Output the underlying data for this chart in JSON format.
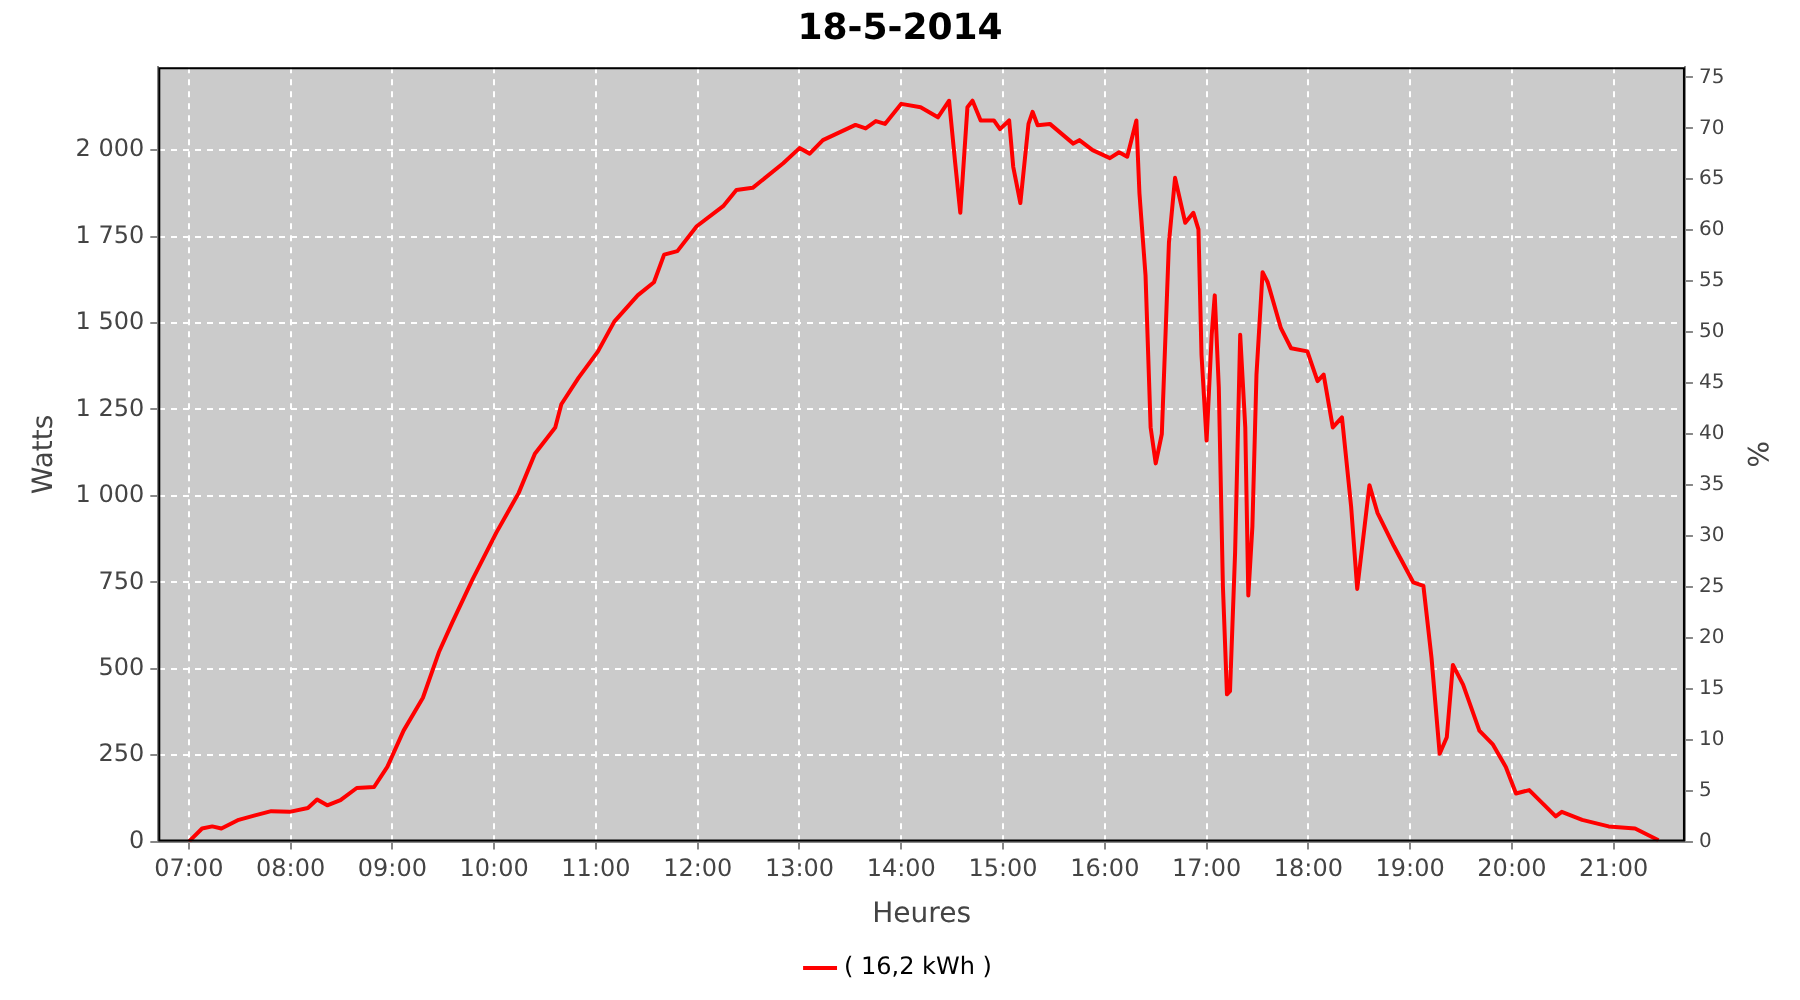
{
  "chart_data": {
    "type": "line",
    "title": "18-5-2014",
    "xlabel": "Heures",
    "ylabel": "Watts",
    "y2label": "%",
    "xlim": [
      6.7,
      21.7
    ],
    "xticks": [
      {
        "value": 7,
        "label": "07:00"
      },
      {
        "value": 8,
        "label": "08:00"
      },
      {
        "value": 9,
        "label": "09:00"
      },
      {
        "value": 10,
        "label": "10:00"
      },
      {
        "value": 11,
        "label": "11:00"
      },
      {
        "value": 12,
        "label": "12:00"
      },
      {
        "value": 13,
        "label": "13:00"
      },
      {
        "value": 14,
        "label": "14:00"
      },
      {
        "value": 15,
        "label": "15:00"
      },
      {
        "value": 16,
        "label": "16:00"
      },
      {
        "value": 17,
        "label": "17:00"
      },
      {
        "value": 18,
        "label": "18:00"
      },
      {
        "value": 19,
        "label": "19:00"
      },
      {
        "value": 20,
        "label": "20:00"
      },
      {
        "value": 21,
        "label": "21:00"
      }
    ],
    "ylim": [
      0,
      2240
    ],
    "yticks": [
      0,
      250,
      500,
      750,
      {
        "value": 1000,
        "label": "1 000"
      },
      {
        "value": 1250,
        "label": "1 250"
      },
      {
        "value": 1500,
        "label": "1 500"
      },
      {
        "value": 1750,
        "label": "1 750"
      },
      {
        "value": 2000,
        "label": "2 000"
      }
    ],
    "y2lim": [
      0,
      76
    ],
    "y2ticks": [
      0,
      5,
      10,
      15,
      20,
      25,
      30,
      35,
      40,
      45,
      50,
      55,
      60,
      65,
      70,
      75
    ],
    "grid": true,
    "legend": "bottom",
    "marker": "none",
    "line_style": "solid",
    "x": [
      7.0,
      7.13,
      7.23,
      7.32,
      7.49,
      7.65,
      7.81,
      7.99,
      8.17,
      8.26,
      8.36,
      8.49,
      8.65,
      8.82,
      8.95,
      9.11,
      9.3,
      9.46,
      9.59,
      9.79,
      10.02,
      10.24,
      10.4,
      10.6,
      10.66,
      10.83,
      11.02,
      11.18,
      11.41,
      11.57,
      11.67,
      11.8,
      11.99,
      12.25,
      12.38,
      12.54,
      12.84,
      13.0,
      13.1,
      13.23,
      13.55,
      13.65,
      13.75,
      13.84,
      14.0,
      14.19,
      14.36,
      14.47,
      14.53,
      14.58,
      14.65,
      14.7,
      14.78,
      14.91,
      14.97,
      15.06,
      15.1,
      15.17,
      15.25,
      15.29,
      15.34,
      15.46,
      15.69,
      15.75,
      15.88,
      16.05,
      16.14,
      16.22,
      16.31,
      16.34,
      16.4,
      16.45,
      16.5,
      16.56,
      16.63,
      16.69,
      16.79,
      16.87,
      16.92,
      16.95,
      17.0,
      17.05,
      17.08,
      17.12,
      17.16,
      17.2,
      17.23,
      17.28,
      17.33,
      17.38,
      17.41,
      17.45,
      17.49,
      17.55,
      17.6,
      17.73,
      17.83,
      17.99,
      18.09,
      18.15,
      18.24,
      18.33,
      18.42,
      18.48,
      18.6,
      18.68,
      18.84,
      19.03,
      19.13,
      19.21,
      19.29,
      19.36,
      19.42,
      19.52,
      19.68,
      19.81,
      19.94,
      20.04,
      20.17,
      20.43,
      20.49,
      20.69,
      20.95,
      21.21,
      21.44
    ],
    "series": [
      {
        "name": "( 16,2 kWh )",
        "color": "#ff0000",
        "values": [
          0,
          38,
          44,
          38,
          63,
          76,
          88,
          86,
          97,
          122,
          105,
          120,
          155,
          158,
          216,
          321,
          416,
          550,
          635,
          760,
          893,
          1008,
          1122,
          1198,
          1265,
          1342,
          1418,
          1504,
          1580,
          1618,
          1698,
          1708,
          1780,
          1838,
          1885,
          1891,
          1962,
          2006,
          1990,
          2029,
          2073,
          2063,
          2084,
          2076,
          2134,
          2124,
          2095,
          2143,
          1962,
          1819,
          2124,
          2143,
          2086,
          2086,
          2061,
          2086,
          1952,
          1847,
          2076,
          2111,
          2072,
          2076,
          2019,
          2029,
          2000,
          1977,
          1994,
          1981,
          2086,
          1876,
          1637,
          1198,
          1094,
          1179,
          1733,
          1920,
          1790,
          1819,
          1771,
          1408,
          1160,
          1466,
          1580,
          1313,
          740,
          426,
          435,
          836,
          1466,
          1198,
          712,
          912,
          1351,
          1647,
          1618,
          1485,
          1427,
          1418,
          1332,
          1351,
          1198,
          1227,
          969,
          731,
          1031,
          950,
          855,
          750,
          740,
          531,
          254,
          302,
          511,
          454,
          321,
          282,
          216,
          139,
          149,
          73,
          86,
          63,
          44,
          38,
          4
        ]
      }
    ]
  }
}
